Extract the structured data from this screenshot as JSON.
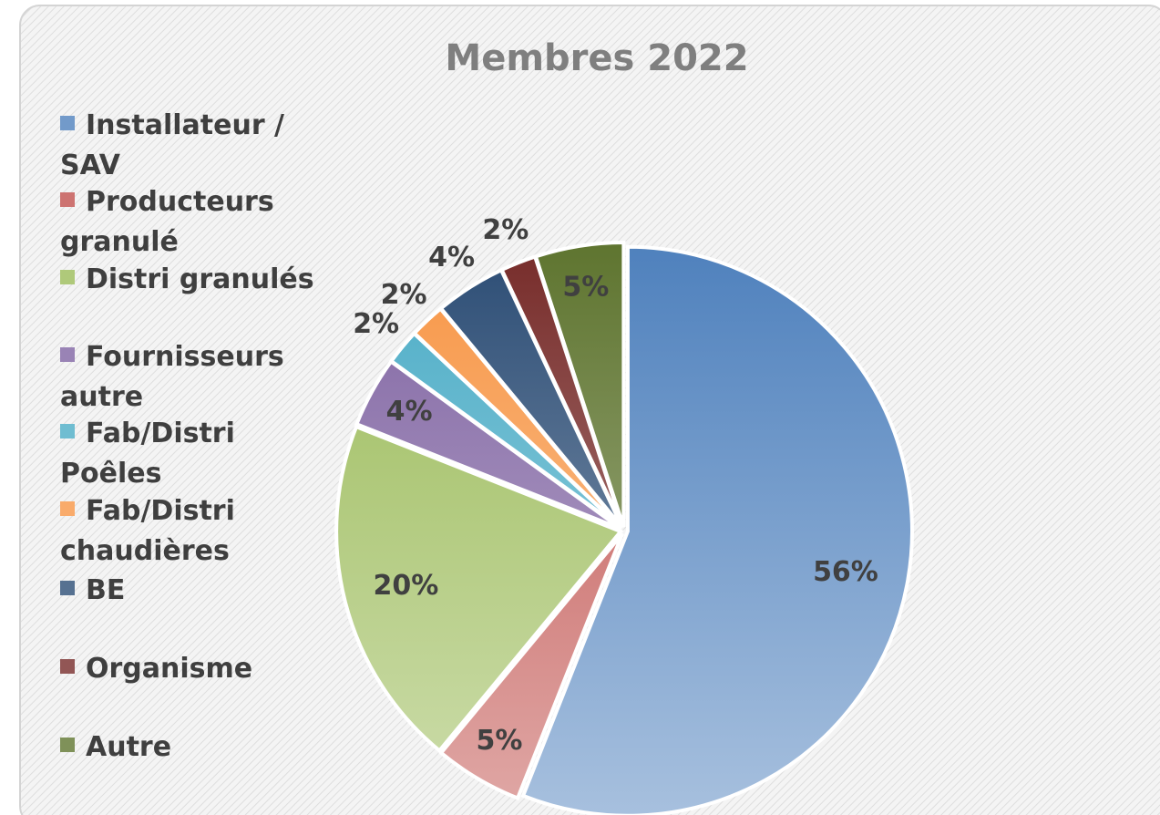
{
  "chart_data": {
    "type": "pie",
    "title": "Membres 2022",
    "categories": [
      "Installateur / SAV",
      "Producteurs granulé",
      "Distri granulés",
      "Fournisseurs autre",
      "Fab/Distri Poêles",
      "Fab/Distri chaudières",
      "BE",
      "Organisme",
      "Autre"
    ],
    "values": [
      56,
      5,
      20,
      4,
      2,
      2,
      4,
      2,
      5
    ],
    "value_labels": [
      "56%",
      "5%",
      "20%",
      "4%",
      "2%",
      "2%",
      "4%",
      "2%",
      "5%"
    ],
    "colors": [
      "#4f81bd",
      "#c0504d",
      "#9bbb59",
      "#8064a2",
      "#4bacc6",
      "#f79646",
      "#2c4d75",
      "#772c2a",
      "#5f7530"
    ],
    "legend": "left"
  }
}
